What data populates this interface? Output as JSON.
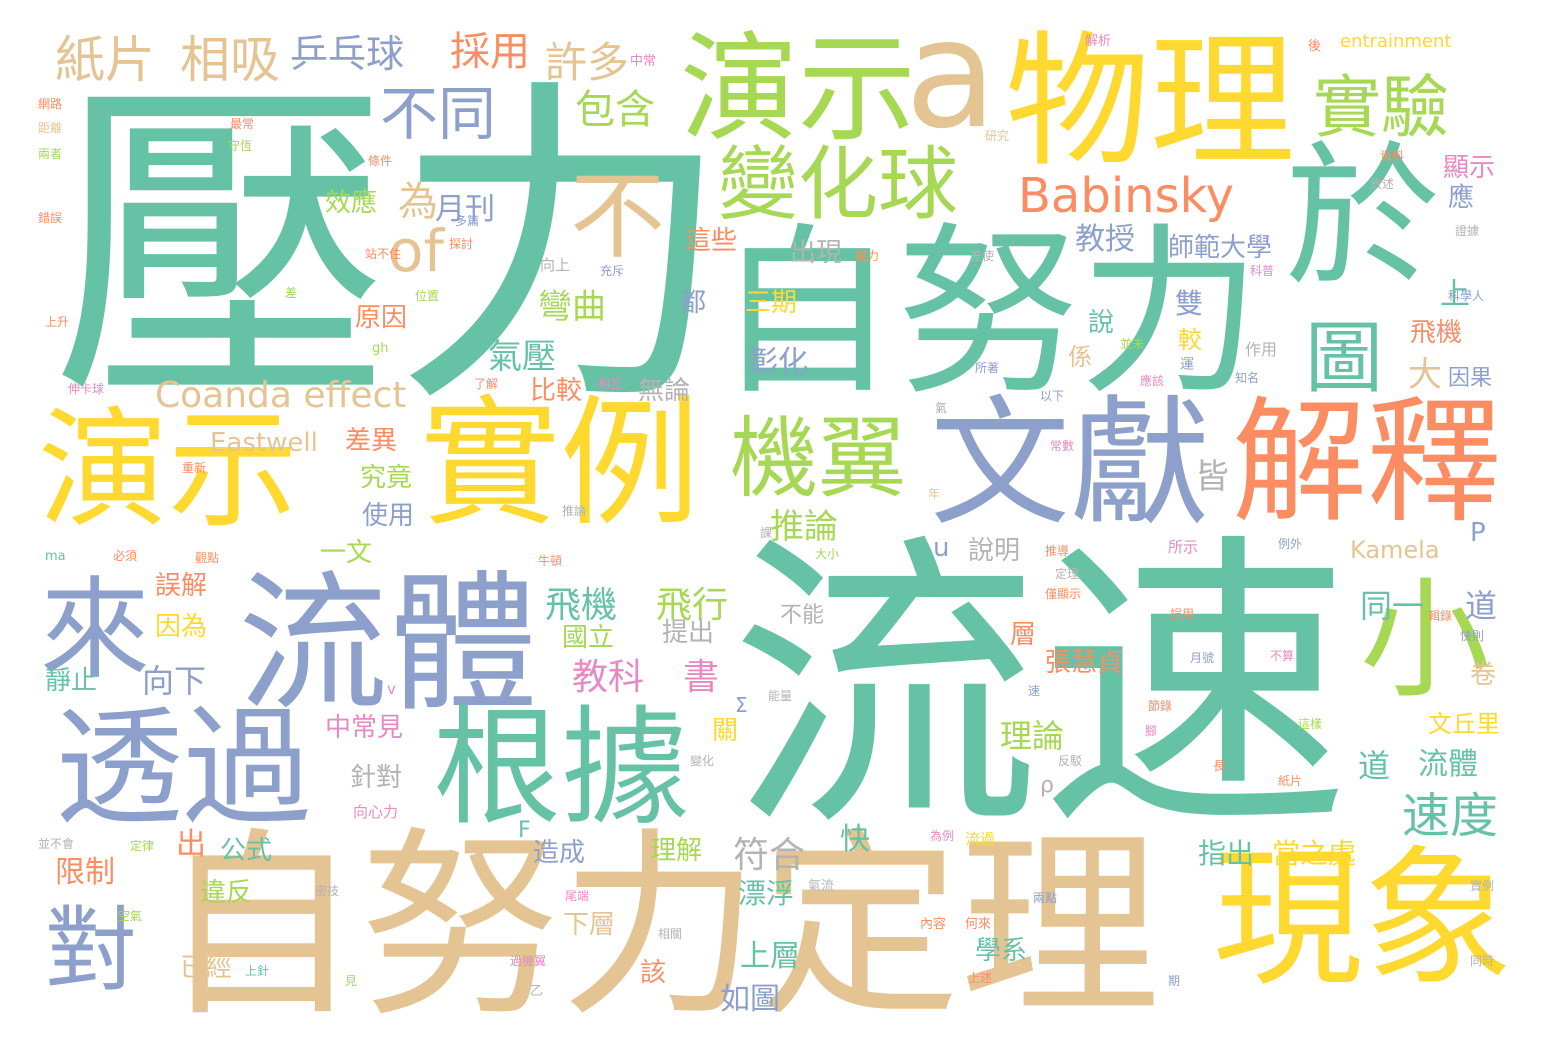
{
  "palette": {
    "green": "#66c2a5",
    "orange": "#fc8d62",
    "blue": "#8da0cb",
    "pink": "#e78ac3",
    "lime": "#a6d854",
    "yellow": "#ffd92f",
    "tan": "#e5c494",
    "gray": "#b3b3b3"
  },
  "words": {
    "yali": "壓力",
    "liusu": "流速",
    "zinuli": "自努力",
    "zinulidingli": "自努力定理",
    "yanshi": "演示",
    "yanshi2": "演示",
    "wuli": "物理",
    "a": "a",
    "yu": "於",
    "shili": "實例",
    "liuti": "流體",
    "wenxian": "文獻",
    "jieshi": "解釋",
    "xianxiang": "現象",
    "genju": "根據",
    "touguo": "透過",
    "lai": "來",
    "jiyi": "機翼",
    "bianhuaqiu": "變化球",
    "shiyan": "實驗",
    "babinsky": "Babinsky",
    "xiao": "小",
    "tu": "圖",
    "dui": "對",
    "bu": "不",
    "of": "of",
    "butong": "不同",
    "zhipian": "紙片",
    "xiangxi": "相吸",
    "pingpangqiu": "乒乓球",
    "caiyong": "採用",
    "xuduo": "許多",
    "baohan": "包含",
    "coanda": "Coanda effect",
    "eastwell": "Eastwell",
    "xiaoying": "效應",
    "wei": "為",
    "yuekan": "月刊",
    "jiaoshou": "教授",
    "shifandaxue": "師範大學",
    "zhexie": "這些",
    "chuxian": "出現",
    "sanqi": "三期",
    "wanqu": "彎曲",
    "qiya": "氣壓",
    "bijiao": "比較",
    "zhanghua": "彰化",
    "wulun": "無論",
    "feiji": "飛機",
    "feiji2": "飛機",
    "feixing": "飛行",
    "jiaoke": "教科",
    "shu": "書",
    "tuilun": "推論",
    "tongyi": "同一",
    "dao": "道",
    "dao2": "道",
    "liuti2": "流體",
    "sudu": "速度",
    "guoli": "國立",
    "kamela": "Kamela",
    "shuoming": "說明",
    "yiwen": "一文",
    "wujie": "誤解",
    "yinwei": "因為",
    "jingzhi": "靜止",
    "xiangxia": "向下",
    "zhongchangjian": "中常見",
    "zhenduei": "針對",
    "lilun": "理論",
    "xianzhi": "限制",
    "chu": "出",
    "gongshi": "公式",
    "zaocheng": "造成",
    "lijie": "理解",
    "fuhe": "符合",
    "zhichu": "指出",
    "dangzhichu": "當之處",
    "piaofu": "漂浮",
    "weifan": "違反",
    "yijing": "已經",
    "xiaceng": "下層",
    "shangceng": "上層",
    "rutu": "如圖",
    "xuexi": "學系",
    "zhanghuizhen": "張慧貞",
    "tichu": "提出",
    "buneng": "不能",
    "yuanyin": "原因",
    "chayi": "差異",
    "jiujing": "究竟",
    "shiyong": "使用",
    "jie": "皆",
    "da": "大",
    "shang": "上",
    "xianshi": "顯示",
    "ying": "應",
    "yinguo": "因果",
    "entrainment": "entrainment",
    "jiexi": "解析",
    "zhongchang": "中常",
    "hou": "後",
    "wanglu": "網路",
    "juli": "距離",
    "liangzhe": "兩者",
    "cuowu": "錯誤",
    "zuichang": "最常",
    "shouheng": "守恆",
    "tiaojian": "條件",
    "yanjiu": "研究",
    "ziliao": "資料",
    "xusu": "敘述",
    "duopian": "多篇",
    "tantao": "探討",
    "zhanbuzhu": "站不住",
    "moli": "魔力",
    "chashi": "差使",
    "xiangshang": "向上",
    "chongchi": "充斥",
    "cha": "差",
    "weizhi": "位置",
    "shangsheng": "上升",
    "shenkaqiu": "伸卡球",
    "liaojie": "了解",
    "xianghu": "相互",
    "suozhu": "所著",
    "yiyou": "以下",
    "yinggai": "應該",
    "zhiming": "知名",
    "qi": "氣",
    "kexue": "科普",
    "kexuejia": "科學人",
    "zhengju": "證據",
    "zhongxin": "重新",
    "tuilun2": "推論",
    "changshu": "常數",
    "nian": "年",
    "guandian": "觀點",
    "bixu": "必須",
    "ke": "課",
    "daxiao": "大小",
    "niudun": "牛頓",
    "tuidao": "推導",
    "suoshi": "所示",
    "liwai": "例外",
    "dingli": "定理",
    "jinxianshi": "僅顯示",
    "wuyong": "誤用",
    "jilu": "輯錄",
    "kuaize": "快則",
    "yuehao": "月號",
    "busuan": "不算",
    "nengliang": "能量",
    "su": "速",
    "jielu": "節錄",
    "jiao": "腳",
    "zheyang": "這樣",
    "bianhua": "變化",
    "fanbo": "反駁",
    "xinxinli": "向心力",
    "chang": "長",
    "zhipian2": "紙片",
    "weili": "為例",
    "liuguo": "流過",
    "bingbuhui": "並不會",
    "dinglv": "定律",
    "mibi": "密技",
    "liangdian": "兩點",
    "shili2": "實例",
    "kongqi": "空氣",
    "weiduan": "尾端",
    "neirong": "內容",
    "helai": "何來",
    "xiangguan": "相關",
    "shangzhen": "上針",
    "guojiyi": "過機翼",
    "shangshu": "上述",
    "jian": "見",
    "qi2": "期",
    "tongshi": "同時",
    "gai": "該",
    "kuai": "快",
    "guan": "關",
    "ceng": "層",
    "juan": "卷",
    "wenqiuli": "文丘里",
    "doushi": "都",
    "zuoyong": "作用",
    "shuo": "說",
    "xi": "係",
    "shuang": "雙",
    "jiao2": "較",
    "yun": "運",
    "bingmo": "並未",
    "qiliu": "氣流",
    "gh": "gh",
    "ma": "ma",
    "v": "v",
    "u": "u",
    "p": "P",
    "rho": "ρ",
    "sigma": "Σ",
    "f": "F",
    "yi": "乙"
  }
}
